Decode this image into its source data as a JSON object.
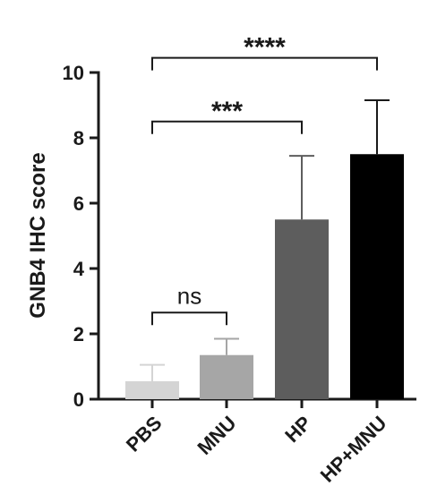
{
  "chart_data": {
    "type": "bar",
    "ylabel": "GNB4 IHC score",
    "xlabel": "",
    "ylim": [
      0,
      10
    ],
    "yticks": [
      "0",
      "2",
      "4",
      "6",
      "8",
      "10"
    ],
    "grid": false,
    "categories": [
      "PBS",
      "MNU",
      "HP",
      "HP+MNU"
    ],
    "values": [
      0.55,
      1.35,
      5.5,
      7.5
    ],
    "error_upper": [
      1.05,
      1.85,
      7.45,
      9.15
    ],
    "colors": [
      "#d4d4d4",
      "#a6a6a6",
      "#5d5d5d",
      "#000000"
    ],
    "significance": [
      {
        "from": "PBS",
        "to": "MNU",
        "label": "ns",
        "y": 2.65
      },
      {
        "from": "PBS",
        "to": "HP",
        "label": "***",
        "y": 8.5
      },
      {
        "from": "PBS",
        "to": "HP+MNU",
        "label": "****",
        "y": 10.45
      }
    ]
  }
}
